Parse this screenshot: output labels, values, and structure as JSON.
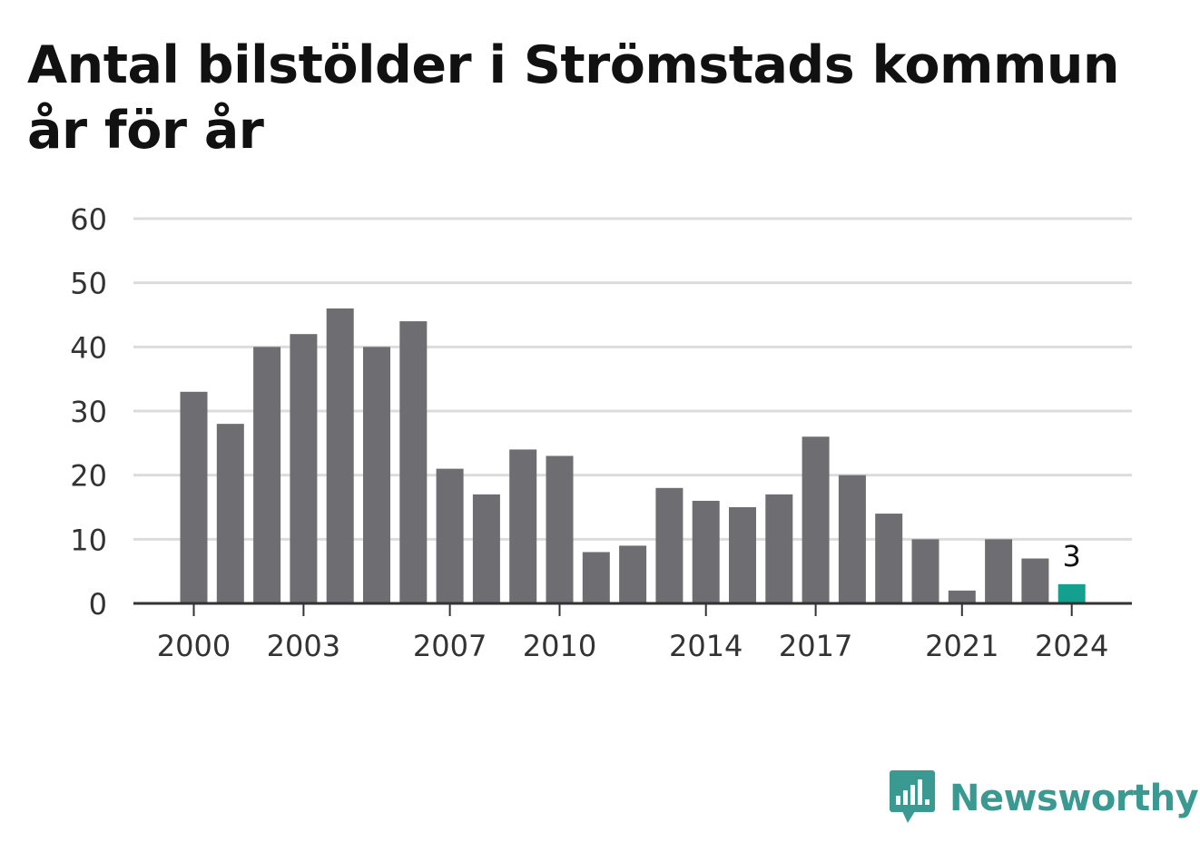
{
  "brand": {
    "name": "Newsworthy",
    "logo_icon": "bar-chart-speech-bubble-icon",
    "color": "#3a9a92"
  },
  "chart_data": {
    "type": "bar",
    "title": "Antal bilstölder i Strömstads kommun år för år",
    "xlabel": "",
    "ylabel": "",
    "categories": [
      "2000",
      "2001",
      "2002",
      "2003",
      "2004",
      "2005",
      "2006",
      "2007",
      "2008",
      "2009",
      "2010",
      "2011",
      "2012",
      "2013",
      "2014",
      "2015",
      "2016",
      "2017",
      "2018",
      "2019",
      "2020",
      "2021",
      "2022",
      "2023",
      "2024"
    ],
    "values": [
      33,
      28,
      40,
      42,
      46,
      40,
      44,
      21,
      17,
      24,
      23,
      8,
      9,
      18,
      16,
      15,
      17,
      26,
      20,
      14,
      10,
      2,
      10,
      7,
      3
    ],
    "x_tick_labels": [
      "2000",
      "2003",
      "2007",
      "2010",
      "2014",
      "2017",
      "2021",
      "2024"
    ],
    "y_ticks": [
      0,
      10,
      20,
      30,
      40,
      50,
      60
    ],
    "ylim": [
      0,
      60
    ],
    "grid": true,
    "bar_color": "#6d6d72",
    "highlight_color": "#14a08f",
    "highlight_category": "2024",
    "data_labels": [
      {
        "category": "2024",
        "text": "3"
      }
    ]
  }
}
